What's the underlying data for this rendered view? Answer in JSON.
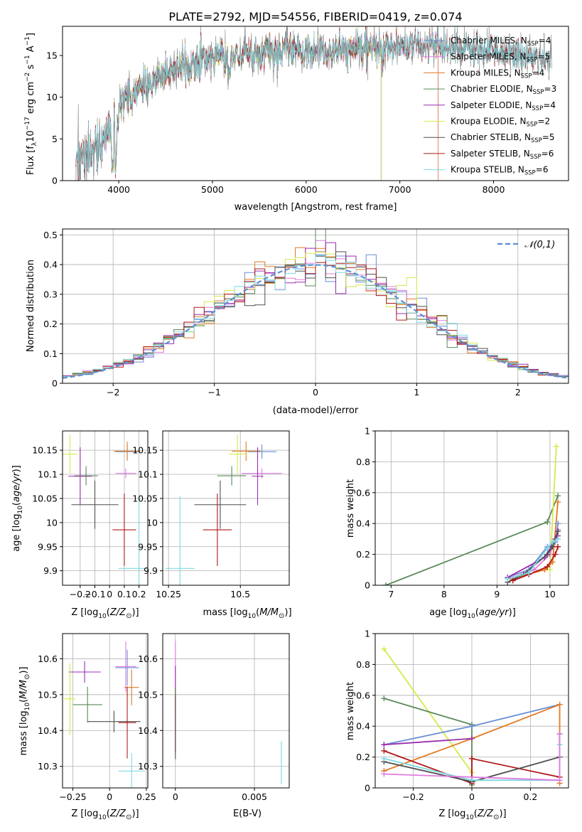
{
  "figure_title": "PLATE=2792, MJD=54556, FIBERID=0419, z=0.074",
  "colors": {
    "Chabrier MILES": "#6a8fd6",
    "Salpeter MILES": "#e07be0",
    "Kroupa MILES": "#e37a22",
    "Chabrier ELODIE": "#5a8a5a",
    "Salpeter ELODIE": "#9a2fb0",
    "Kroupa ELODIE": "#d4ea4b",
    "Chabrier STELIB": "#4f4f4f",
    "Salpeter STELIB": "#b01818",
    "Kroupa STELIB": "#7fd8e0",
    "data": "#808080",
    "normal": "#5b8fd9",
    "grid": "#b0b0b0"
  },
  "chart_data": [
    {
      "id": "spectrum",
      "type": "line",
      "title": "PLATE=2792, MJD=54556, FIBERID=0419, z=0.074",
      "xlabel": "wavelength [Angstrom, rest frame]",
      "ylabel": "Flux [f_λ 10^-17 erg cm^-2 s^-1 A^-1]",
      "xlim": [
        3400,
        8800
      ],
      "ylim": [
        0,
        18.5
      ],
      "xticks": [
        4000,
        5000,
        6000,
        7000,
        8000
      ],
      "yticks": [
        0,
        5,
        10,
        15
      ],
      "grid": false,
      "legend_position": "top-right",
      "legend": [
        {
          "label": "Chabrier MILES",
          "sub": "N",
          "subscript": "SSP",
          "value": "=4"
        },
        {
          "label": "Salpeter MILES",
          "sub": "N",
          "subscript": "SSP",
          "value": "=5"
        },
        {
          "label": "Kroupa MILES",
          "sub": "N",
          "subscript": "SSP",
          "value": "=4"
        },
        {
          "label": "Chabrier ELODIE",
          "sub": "N",
          "subscript": "SSP",
          "value": "=3"
        },
        {
          "label": "Salpeter ELODIE",
          "sub": "N",
          "subscript": "SSP",
          "value": "=4"
        },
        {
          "label": "Kroupa ELODIE",
          "sub": "N",
          "subscript": "SSP",
          "value": "=2"
        },
        {
          "label": "Chabrier STELIB",
          "sub": "N",
          "subscript": "SSP",
          "value": "=5"
        },
        {
          "label": "Salpeter STELIB",
          "sub": "N",
          "subscript": "SSP",
          "value": "=6"
        },
        {
          "label": "Kroupa STELIB",
          "sub": "N",
          "subscript": "SSP",
          "value": "=6"
        }
      ],
      "continuum": {
        "x": [
          3550,
          3700,
          3900,
          4000,
          4100,
          4300,
          4500,
          4800,
          5000,
          5200,
          5500,
          5800,
          6000,
          6300,
          6600,
          7000,
          7400,
          7800,
          8200,
          8600
        ],
        "y": [
          4.5,
          5.5,
          7.5,
          9.0,
          10.0,
          11.5,
          12.8,
          14.0,
          14.8,
          15.0,
          15.3,
          15.6,
          15.4,
          15.5,
          15.8,
          16.2,
          16.0,
          15.6,
          15.2,
          14.5
        ]
      },
      "model_coverage": {
        "Chabrier MILES": [
          3540,
          7410
        ],
        "Salpeter MILES": [
          3540,
          7410
        ],
        "Kroupa MILES": [
          3540,
          7410
        ],
        "Chabrier ELODIE": [
          3900,
          6800
        ],
        "Salpeter ELODIE": [
          3900,
          6800
        ],
        "Kroupa ELODIE": [
          3900,
          6800
        ],
        "Chabrier STELIB": [
          3540,
          8600
        ],
        "Salpeter STELIB": [
          3540,
          8600
        ],
        "Kroupa STELIB": [
          3540,
          8600
        ]
      }
    },
    {
      "id": "residuals",
      "type": "line",
      "xlabel": "(data-model)/error",
      "ylabel": "Normed distribution",
      "xlim": [
        -2.5,
        2.5
      ],
      "ylim": [
        0,
        0.52
      ],
      "xticks": [
        -2,
        -1,
        0,
        1,
        2
      ],
      "yticks": [
        0.0,
        0.1,
        0.2,
        0.3,
        0.4,
        0.5
      ],
      "grid": true,
      "legend_position": "top-right",
      "legend": [
        {
          "label": "𝒩(0,1)"
        }
      ],
      "series_name": "𝒩(0,1)"
    },
    {
      "id": "age_vs_Z",
      "type": "scatter",
      "xlabel": "Z [log10(Z/Z⊙)]",
      "ylabel": "age [log10(age/yr)]",
      "xlim": [
        -0.32,
        0.26
      ],
      "ylim": [
        9.87,
        10.19
      ],
      "xticks": [
        -0.2,
        -0.1,
        0.0,
        0.1,
        0.2
      ],
      "yticks": [
        9.9,
        9.95,
        10.0,
        10.05,
        10.1,
        10.15
      ],
      "grid": true,
      "points": [
        {
          "series": "Chabrier MILES",
          "x": 0.12,
          "y": 10.147,
          "xerr": 0.08,
          "yerr": 0.015
        },
        {
          "series": "Salpeter MILES",
          "x": 0.11,
          "y": 10.102,
          "xerr": 0.07,
          "yerr": 0.01
        },
        {
          "series": "Kroupa MILES",
          "x": 0.12,
          "y": 10.148,
          "xerr": 0.09,
          "yerr": 0.02
        },
        {
          "series": "Chabrier ELODIE",
          "x": -0.16,
          "y": 10.097,
          "xerr": 0.08,
          "yerr": 0.02
        },
        {
          "series": "Salpeter ELODIE",
          "x": -0.2,
          "y": 10.096,
          "xerr": 0.08,
          "yerr": 0.06
        },
        {
          "series": "Kroupa ELODIE",
          "x": -0.27,
          "y": 10.142,
          "xerr": 0.05,
          "yerr": 0.04
        },
        {
          "series": "Chabrier STELIB",
          "x": -0.1,
          "y": 10.037,
          "xerr": 0.16,
          "yerr": 0.05
        },
        {
          "series": "Salpeter STELIB",
          "x": 0.1,
          "y": 9.985,
          "xerr": 0.08,
          "yerr": 0.075
        },
        {
          "series": "Kroupa STELIB",
          "x": 0.2,
          "y": 9.905,
          "xerr": 0.14,
          "yerr": 0.15
        }
      ]
    },
    {
      "id": "age_vs_mass",
      "type": "scatter",
      "xlabel": "mass [log10(M/M⊙)]",
      "xlim": [
        10.23,
        10.67
      ],
      "ylim": [
        9.87,
        10.19
      ],
      "xticks": [
        10.25,
        10.5
      ],
      "yticks": [
        9.9,
        9.95,
        10.0,
        10.05,
        10.1,
        10.15
      ],
      "grid": true,
      "points": [
        {
          "series": "Chabrier MILES",
          "x": 10.575,
          "y": 10.147,
          "yerr": 0.015,
          "xerr": 0.05
        },
        {
          "series": "Salpeter MILES",
          "x": 10.575,
          "y": 10.102,
          "yerr": 0.01,
          "xerr": 0.07
        },
        {
          "series": "Kroupa MILES",
          "x": 10.52,
          "y": 10.148,
          "yerr": 0.02,
          "xerr": 0.05
        },
        {
          "series": "Chabrier ELODIE",
          "x": 10.47,
          "y": 10.097,
          "yerr": 0.02,
          "xerr": 0.05
        },
        {
          "series": "Salpeter ELODIE",
          "x": 10.56,
          "y": 10.096,
          "yerr": 0.06,
          "xerr": 0.02
        },
        {
          "series": "Kroupa ELODIE",
          "x": 10.49,
          "y": 10.142,
          "yerr": 0.04,
          "xerr": 0.03
        },
        {
          "series": "Chabrier STELIB",
          "x": 10.43,
          "y": 10.037,
          "yerr": 0.05,
          "xerr": 0.09
        },
        {
          "series": "Salpeter STELIB",
          "x": 10.42,
          "y": 9.985,
          "yerr": 0.075,
          "xerr": 0.05
        },
        {
          "series": "Kroupa STELIB",
          "x": 10.29,
          "y": 9.905,
          "yerr": 0.15,
          "xerr": 0.05
        }
      ]
    },
    {
      "id": "weight_vs_age",
      "type": "line",
      "xlabel": "age [log10(age/yr)]",
      "ylabel": "mass weight",
      "xlim": [
        6.7,
        10.35
      ],
      "ylim": [
        0,
        1.0
      ],
      "xticks": [
        7,
        8,
        9,
        10
      ],
      "yticks": [
        0.0,
        0.2,
        0.4,
        0.6,
        0.8,
        1.0
      ],
      "grid": true,
      "series": [
        {
          "series": "Chabrier ELODIE",
          "x": [
            6.9,
            9.95,
            10.15
          ],
          "y": [
            0.0,
            0.41,
            0.58
          ]
        },
        {
          "series": "Kroupa ELODIE",
          "x": [
            10.0,
            10.12
          ],
          "y": [
            0.1,
            0.9
          ]
        },
        {
          "series": "Kroupa MILES",
          "x": [
            9.25,
            9.9,
            10.05,
            10.15
          ],
          "y": [
            0.04,
            0.1,
            0.15,
            0.54
          ]
        },
        {
          "series": "Chabrier MILES",
          "x": [
            9.2,
            9.6,
            9.95,
            10.1,
            10.15
          ],
          "y": [
            0.05,
            0.1,
            0.25,
            0.28,
            0.4
          ]
        },
        {
          "series": "Salpeter MILES",
          "x": [
            9.3,
            9.7,
            10.0,
            10.15
          ],
          "y": [
            0.05,
            0.1,
            0.2,
            0.36
          ]
        },
        {
          "series": "Salpeter ELODIE",
          "x": [
            9.2,
            9.9,
            10.1,
            10.15
          ],
          "y": [
            0.05,
            0.18,
            0.3,
            0.32
          ]
        },
        {
          "series": "Chabrier STELIB",
          "x": [
            9.2,
            9.5,
            9.95,
            10.05,
            10.15
          ],
          "y": [
            0.02,
            0.07,
            0.2,
            0.25,
            0.35
          ]
        },
        {
          "series": "Salpeter STELIB",
          "x": [
            9.3,
            9.6,
            9.95,
            10.1,
            10.15
          ],
          "y": [
            0.03,
            0.07,
            0.12,
            0.2,
            0.25
          ]
        },
        {
          "series": "Kroupa STELIB",
          "x": [
            9.2,
            9.6,
            9.95,
            10.05,
            10.15
          ],
          "y": [
            0.04,
            0.08,
            0.24,
            0.28,
            0.3
          ]
        }
      ]
    },
    {
      "id": "mass_vs_Z",
      "type": "scatter",
      "xlabel": "Z [log10(Z/Z⊙)]",
      "ylabel": "mass [log10(M/M⊙)]",
      "xlim": [
        -0.32,
        0.26
      ],
      "ylim": [
        10.24,
        10.67
      ],
      "xticks": [
        -0.25,
        0.0,
        0.25
      ],
      "yticks": [
        10.3,
        10.4,
        10.5,
        10.6
      ],
      "grid": true,
      "points": [
        {
          "series": "Chabrier MILES",
          "x": 0.12,
          "y": 10.575,
          "xerr": 0.08,
          "yerr": 0.05
        },
        {
          "series": "Salpeter MILES",
          "x": 0.11,
          "y": 10.578,
          "xerr": 0.07,
          "yerr": 0.07
        },
        {
          "series": "Kroupa MILES",
          "x": 0.15,
          "y": 10.52,
          "xerr": 0.05,
          "yerr": 0.05
        },
        {
          "series": "Chabrier ELODIE",
          "x": -0.15,
          "y": 10.472,
          "xerr": 0.1,
          "yerr": 0.05
        },
        {
          "series": "Salpeter ELODIE",
          "x": -0.17,
          "y": 10.563,
          "xerr": 0.11,
          "yerr": 0.03
        },
        {
          "series": "Kroupa ELODIE",
          "x": -0.27,
          "y": 10.488,
          "xerr": 0.04,
          "yerr": 0.1
        },
        {
          "series": "Chabrier STELIB",
          "x": 0.03,
          "y": 10.425,
          "xerr": 0.18,
          "yerr": 0.03
        },
        {
          "series": "Salpeter STELIB",
          "x": 0.12,
          "y": 10.422,
          "xerr": 0.06,
          "yerr": 0.1
        },
        {
          "series": "Kroupa STELIB",
          "x": 0.15,
          "y": 10.287,
          "xerr": 0.09,
          "yerr": 0.05
        }
      ]
    },
    {
      "id": "mass_vs_ebv",
      "type": "scatter",
      "xlabel": "E(B-V)",
      "xlim": [
        -0.0008,
        0.0072
      ],
      "ylim": [
        10.24,
        10.67
      ],
      "xticks": [
        0.0,
        0.005
      ],
      "yticks": [
        10.3,
        10.4,
        10.5,
        10.6
      ],
      "grid": true,
      "points": [
        {
          "series": "Salpeter MILES",
          "x": 0.0,
          "y": 10.58,
          "yerr": 0.07
        },
        {
          "series": "Salpeter ELODIE",
          "x": 0.0,
          "y": 10.55,
          "yerr": 0.03
        },
        {
          "series": "Kroupa ELODIE",
          "x": 0.0,
          "y": 10.49,
          "yerr": 0.03
        },
        {
          "series": "Salpeter STELIB",
          "x": 0.0,
          "y": 10.42,
          "yerr": 0.08
        },
        {
          "series": "Chabrier STELIB",
          "x": 0.0,
          "y": 10.42,
          "yerr": 0.1
        },
        {
          "series": "Kroupa STELIB",
          "x": 0.0067,
          "y": 10.31,
          "yerr": 0.06
        }
      ]
    },
    {
      "id": "weight_vs_Z",
      "type": "line",
      "xlabel": "Z [log10(Z/Z⊙)]",
      "ylabel": "mass weight",
      "xlim": [
        -0.33,
        0.33
      ],
      "ylim": [
        0,
        1.0
      ],
      "xticks": [
        -0.2,
        0.0,
        0.2
      ],
      "yticks": [
        0.0,
        0.2,
        0.4,
        0.6,
        0.8,
        1.0
      ],
      "grid": true,
      "series": [
        {
          "series": "Kroupa ELODIE",
          "x": [
            -0.3,
            0.0
          ],
          "y": [
            0.9,
            0.1
          ]
        },
        {
          "series": "Chabrier ELODIE",
          "x": [
            -0.3,
            0.0,
            0.0
          ],
          "y": [
            0.58,
            0.41,
            0.02
          ]
        },
        {
          "series": "Chabrier MILES",
          "x": [
            -0.3,
            0.0,
            0.3
          ],
          "y": [
            0.28,
            0.4,
            0.54
          ]
        },
        {
          "series": "Kroupa MILES",
          "x": [
            -0.3,
            0.0,
            0.3,
            0.3
          ],
          "y": [
            0.11,
            0.32,
            0.54,
            0.03
          ]
        },
        {
          "series": "Salpeter ELODIE",
          "x": [
            -0.3,
            0.0
          ],
          "y": [
            0.28,
            0.32
          ]
        },
        {
          "series": "Salpeter STELIB",
          "x": [
            -0.3,
            0.0,
            0.0,
            0.3
          ],
          "y": [
            0.24,
            0.03,
            0.19,
            0.07
          ]
        },
        {
          "series": "Chabrier STELIB",
          "x": [
            -0.3,
            0.0,
            0.3,
            0.3
          ],
          "y": [
            0.17,
            0.04,
            0.2,
            0.35
          ]
        },
        {
          "series": "Kroupa STELIB",
          "x": [
            -0.3,
            0.0,
            0.3,
            0.3
          ],
          "y": [
            0.19,
            0.05,
            0.05,
            0.28
          ]
        },
        {
          "series": "Salpeter MILES",
          "x": [
            -0.3,
            0.3,
            0.3
          ],
          "y": [
            0.09,
            0.05,
            0.35
          ]
        }
      ]
    }
  ]
}
